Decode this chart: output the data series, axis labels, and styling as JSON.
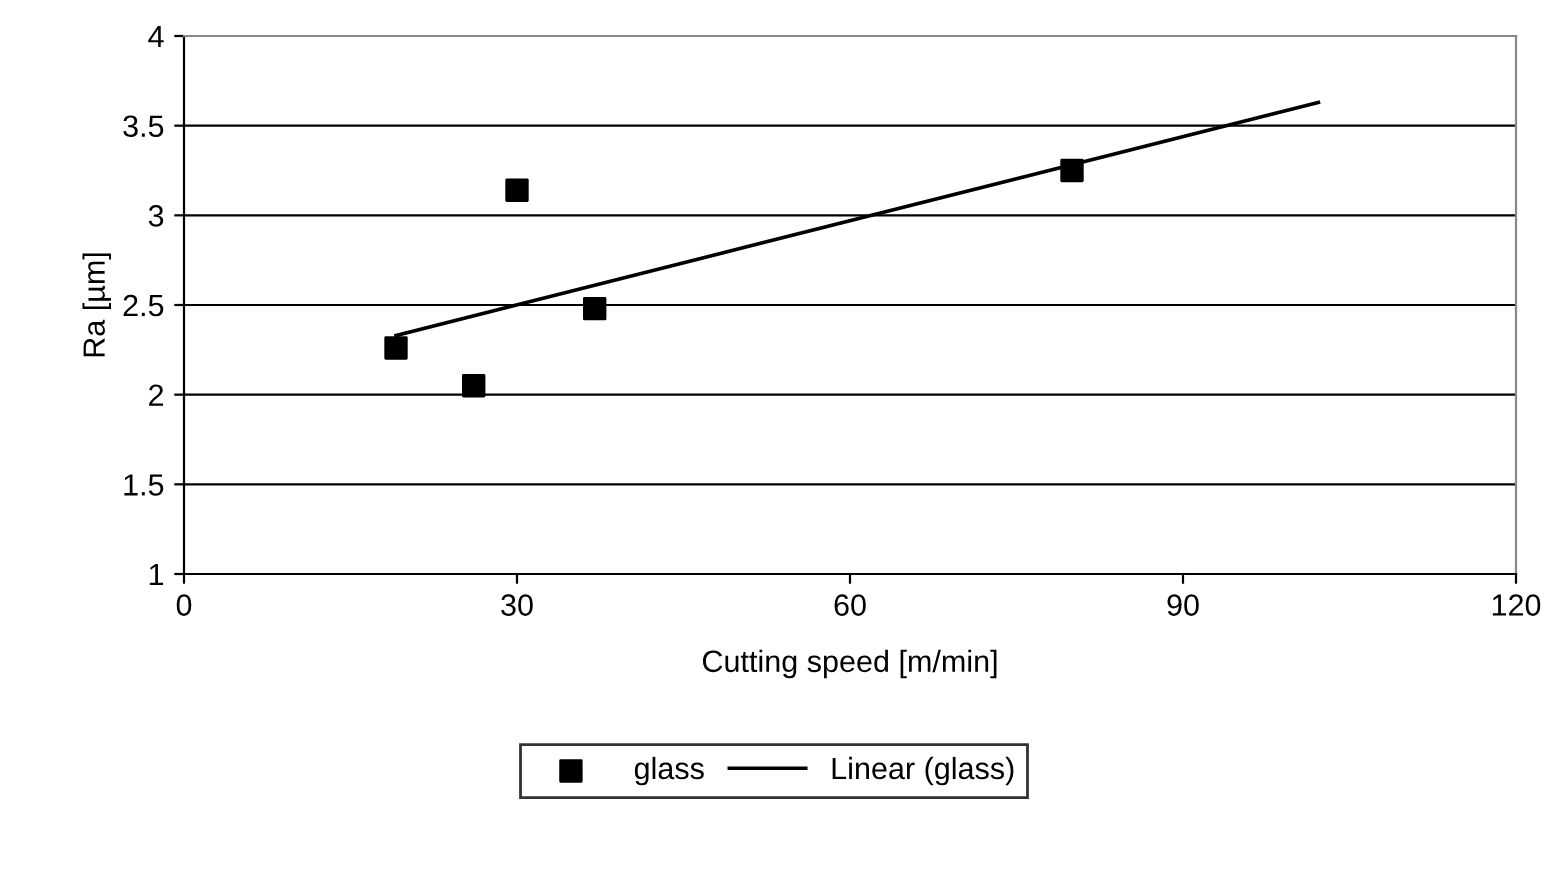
{
  "chart_data": {
    "type": "scatter",
    "xlabel": "Cutting speed [m/min]",
    "ylabel": "Ra [µm]",
    "series": [
      {
        "name": "glass",
        "color": "#000000",
        "marker": "square",
        "x": [
          19.1,
          26.1,
          30,
          37,
          80
        ],
        "values": [
          2.26,
          2.05,
          3.14,
          2.48,
          3.25
        ]
      },
      {
        "name": "Linear (glass)",
        "type": "line",
        "color": "#000000",
        "marker": "none",
        "line_style": "solid",
        "x": [
          19.1,
          102.2
        ],
        "values": [
          2.33,
          3.63
        ]
      }
    ],
    "xlim": [
      0,
      120
    ],
    "xticks": [
      0,
      30,
      60,
      90,
      120
    ],
    "ylim": [
      1,
      4
    ],
    "yticks": [
      1,
      1.5,
      2,
      2.5,
      3,
      3.5,
      4
    ],
    "grid": "y",
    "legend": "bottom"
  }
}
